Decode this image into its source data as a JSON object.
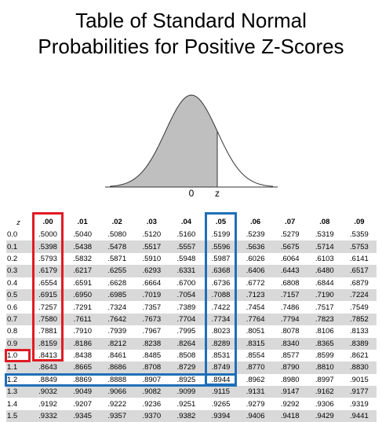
{
  "title": {
    "line1": "Table of Standard Normal",
    "line2": "Probabilities for Positive Z-Scores"
  },
  "curve": {
    "label_zero": "0",
    "label_z": "z"
  },
  "table": {
    "corner_label": "z",
    "columns": [
      ".00",
      ".01",
      ".02",
      ".03",
      ".04",
      ".05",
      ".06",
      ".07",
      ".08",
      ".09"
    ],
    "rows": [
      {
        "z": "0.0",
        "values": [
          ".5000",
          ".5040",
          ".5080",
          ".5120",
          ".5160",
          ".5199",
          ".5239",
          ".5279",
          ".5319",
          ".5359"
        ]
      },
      {
        "z": "0.1",
        "values": [
          ".5398",
          ".5438",
          ".5478",
          ".5517",
          ".5557",
          ".5596",
          ".5636",
          ".5675",
          ".5714",
          ".5753"
        ]
      },
      {
        "z": "0.2",
        "values": [
          ".5793",
          ".5832",
          ".5871",
          ".5910",
          ".5948",
          ".5987",
          ".6026",
          ".6064",
          ".6103",
          ".6141"
        ]
      },
      {
        "z": "0.3",
        "values": [
          ".6179",
          ".6217",
          ".6255",
          ".6293",
          ".6331",
          ".6368",
          ".6406",
          ".6443",
          ".6480",
          ".6517"
        ]
      },
      {
        "z": "0.4",
        "values": [
          ".6554",
          ".6591",
          ".6628",
          ".6664",
          ".6700",
          ".6736",
          ".6772",
          ".6808",
          ".6844",
          ".6879"
        ]
      },
      {
        "z": "0.5",
        "values": [
          ".6915",
          ".6950",
          ".6985",
          ".7019",
          ".7054",
          ".7088",
          ".7123",
          ".7157",
          ".7190",
          ".7224"
        ]
      },
      {
        "z": "0.6",
        "values": [
          ".7257",
          ".7291",
          ".7324",
          ".7357",
          ".7389",
          ".7422",
          ".7454",
          ".7486",
          ".7517",
          ".7549"
        ]
      },
      {
        "z": "0.7",
        "values": [
          ".7580",
          ".7611",
          ".7642",
          ".7673",
          ".7704",
          ".7734",
          ".7764",
          ".7794",
          ".7823",
          ".7852"
        ]
      },
      {
        "z": "0.8",
        "values": [
          ".7881",
          ".7910",
          ".7939",
          ".7967",
          ".7995",
          ".8023",
          ".8051",
          ".8078",
          ".8106",
          ".8133"
        ]
      },
      {
        "z": "0.9",
        "values": [
          ".8159",
          ".8186",
          ".8212",
          ".8238",
          ".8264",
          ".8289",
          ".8315",
          ".8340",
          ".8365",
          ".8389"
        ]
      },
      {
        "z": "1.0",
        "values": [
          ".8413",
          ".8438",
          ".8461",
          ".8485",
          ".8508",
          ".8531",
          ".8554",
          ".8577",
          ".8599",
          ".8621"
        ]
      },
      {
        "z": "1.1",
        "values": [
          ".8643",
          ".8665",
          ".8686",
          ".8708",
          ".8729",
          ".8749",
          ".8770",
          ".8790",
          ".8810",
          ".8830"
        ]
      },
      {
        "z": "1.2",
        "values": [
          ".8849",
          ".8869",
          ".8888",
          ".8907",
          ".8925",
          ".8944",
          ".8962",
          ".8980",
          ".8997",
          ".9015"
        ]
      },
      {
        "z": "1.3",
        "values": [
          ".9032",
          ".9049",
          ".9066",
          ".9082",
          ".9099",
          ".9115",
          ".9131",
          ".9147",
          ".9162",
          ".9177"
        ]
      },
      {
        "z": "1.4",
        "values": [
          ".9192",
          ".9207",
          ".9222",
          ".9236",
          ".9251",
          ".9265",
          ".9279",
          ".9292",
          ".9306",
          ".9319"
        ]
      },
      {
        "z": "1.5",
        "values": [
          ".9332",
          ".9345",
          ".9357",
          ".9370",
          ".9382",
          ".9394",
          ".9406",
          ".9418",
          ".9429",
          ".9441"
        ]
      }
    ]
  },
  "highlights": {
    "red_color": "#e01b24",
    "blue_color": "#1f6fb8",
    "red_column": ".00",
    "red_row": "1.0",
    "blue_column": ".05",
    "blue_row": "1.2"
  }
}
